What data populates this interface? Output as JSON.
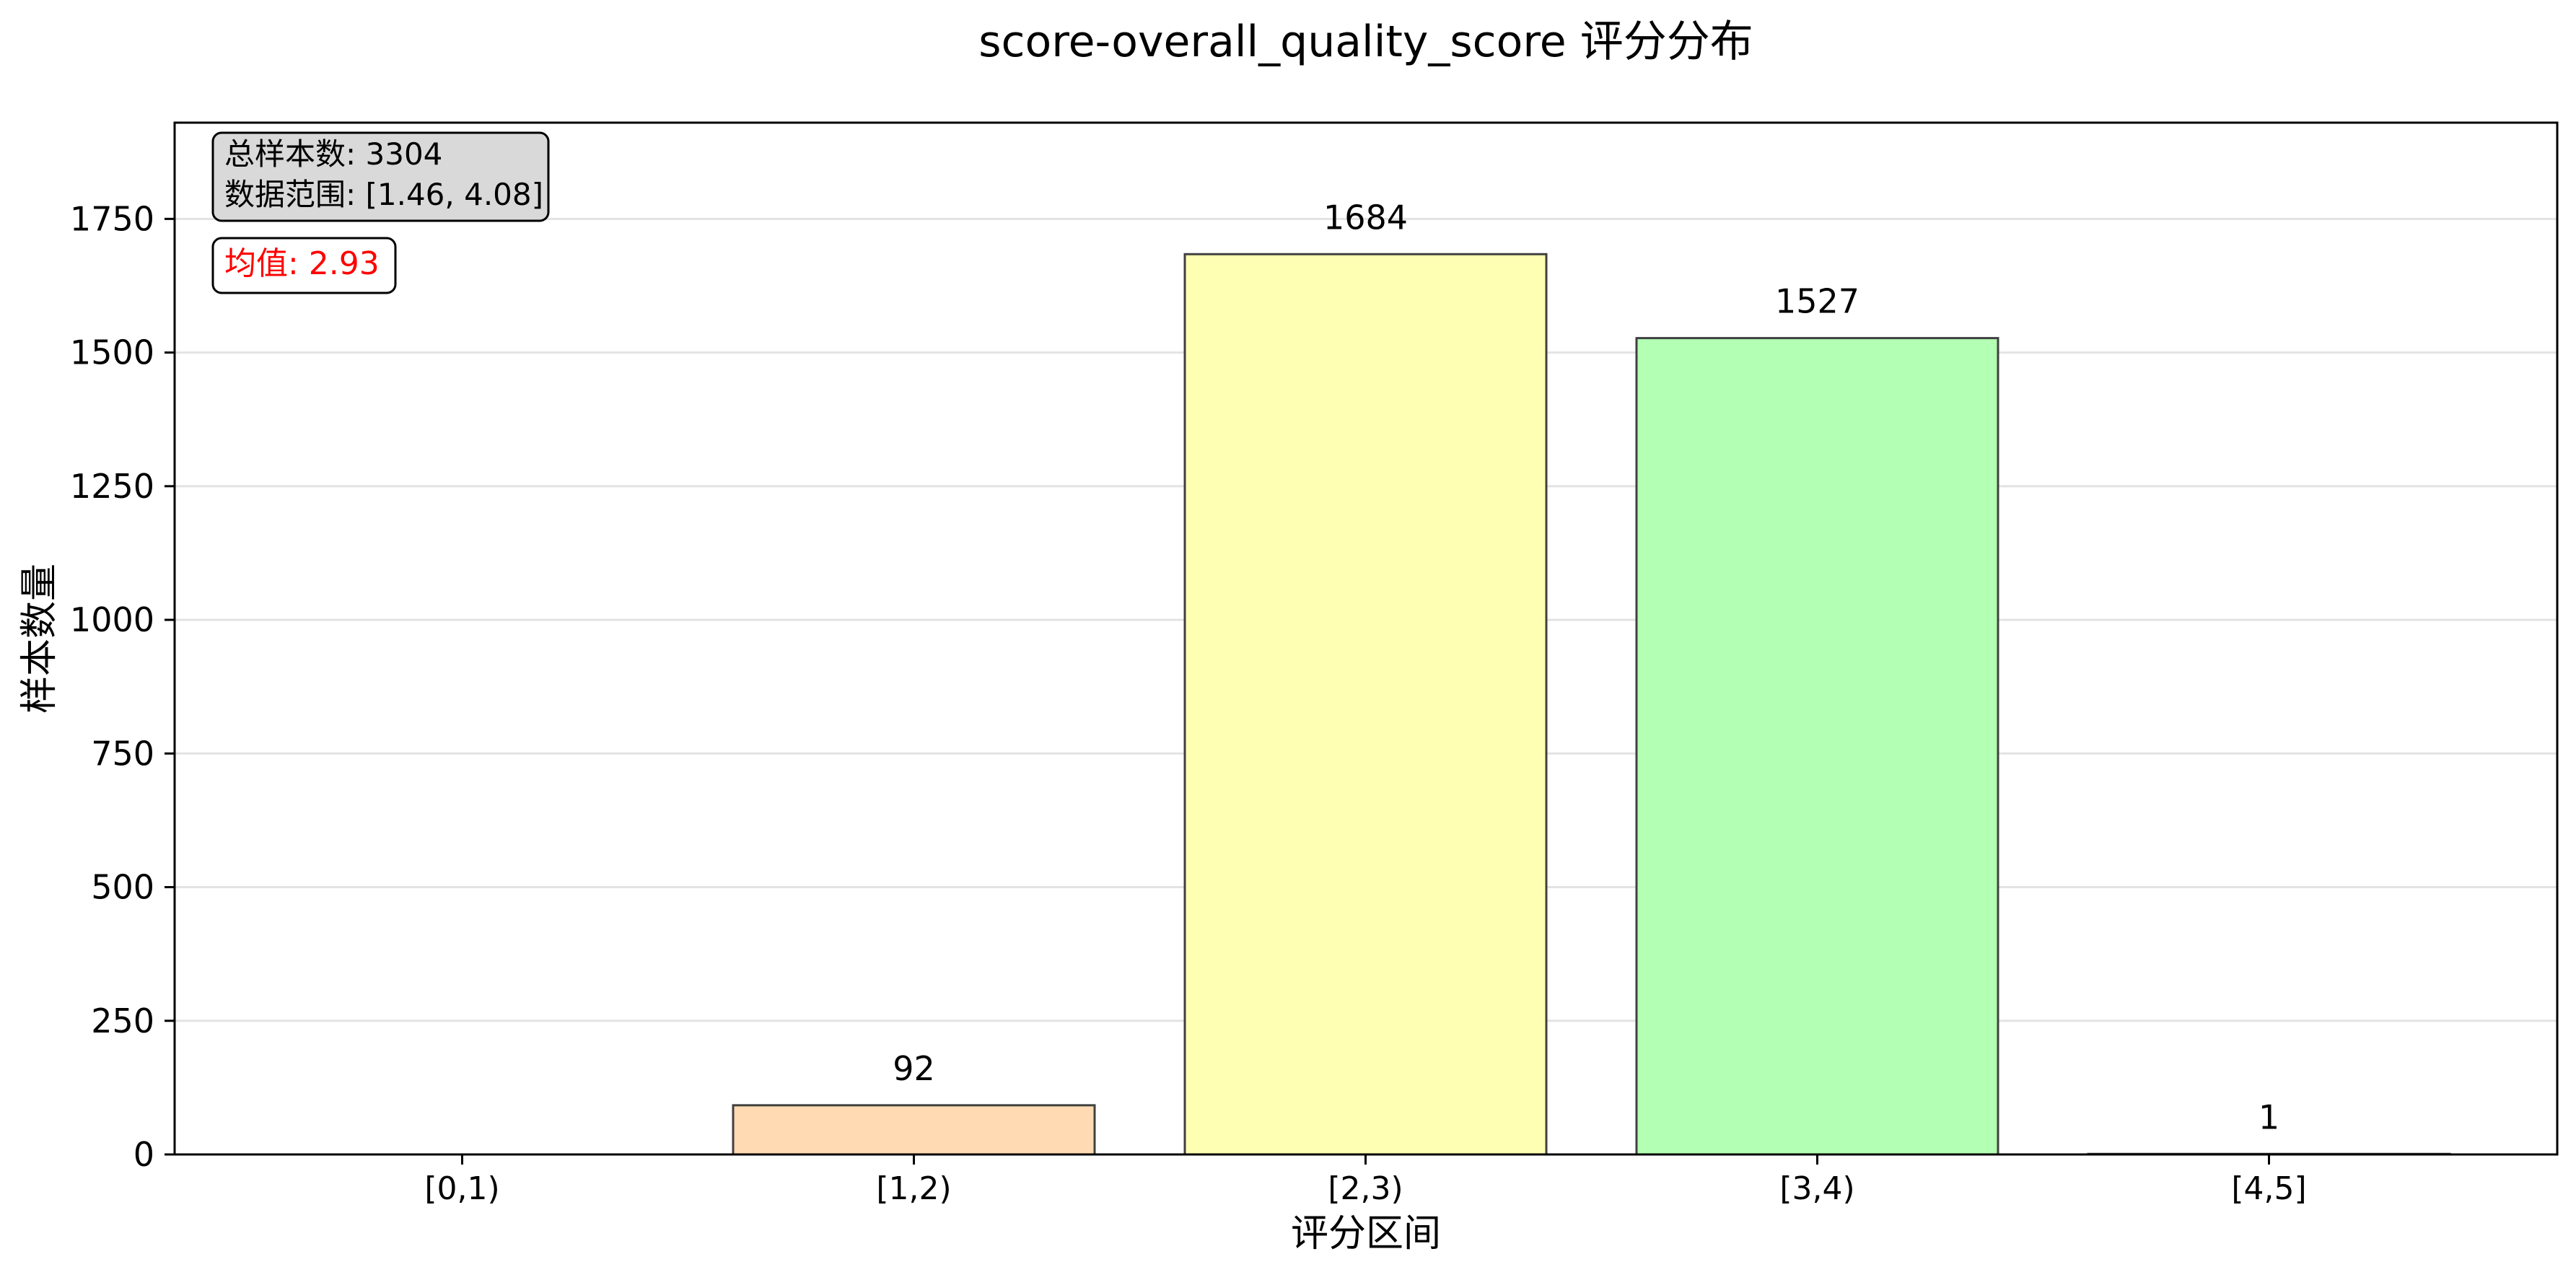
{
  "chart_data": {
    "type": "bar",
    "title": "score-overall_quality_score 评分分布",
    "xlabel": "评分区间",
    "ylabel": "样本数量",
    "categories": [
      "[0,1)",
      "[1,2)",
      "[2,3)",
      "[3,4)",
      "[4,5]"
    ],
    "values": [
      0,
      92,
      1684,
      1527,
      1
    ],
    "bar_labels": [
      "",
      "92",
      "1684",
      "1527",
      "1"
    ],
    "bar_colors": [
      "#ffb3b3",
      "#ffdab3",
      "#ffffb3",
      "#b3ffb3",
      "#b3d9ff"
    ],
    "bar_edge_color": "#404040",
    "ylim": [
      0,
      1930
    ],
    "yticks": [
      0,
      250,
      500,
      750,
      1000,
      1250,
      1500,
      1750
    ],
    "ytick_labels": [
      "0",
      "250",
      "500",
      "750",
      "1000",
      "1250",
      "1500",
      "1750"
    ],
    "grid": true,
    "grid_axis": "y",
    "annotations": {
      "stats_box": {
        "line1": "总样本数: 3304",
        "line2": "数据范围: [1.46, 4.08]",
        "background": "#d9d9d9"
      },
      "mean_box": {
        "text": "均值: 2.93",
        "color": "#ff0000"
      }
    }
  }
}
